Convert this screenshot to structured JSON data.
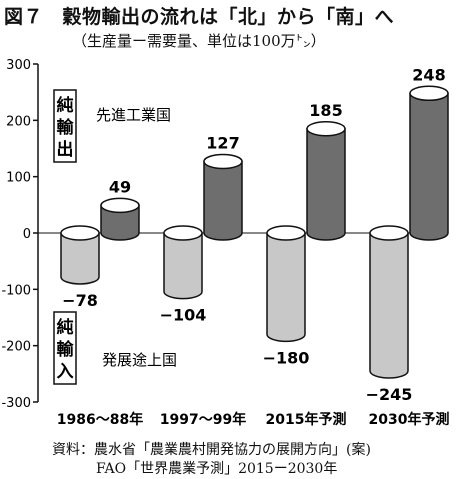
{
  "figure": {
    "title": "図７　穀物輸出の流れは「北」から「南」へ",
    "subtitle": "（生産量ー需要量、単位は100万㌧）"
  },
  "chart_data": {
    "type": "bar",
    "bar_style": "3d-cylinder",
    "categories": [
      "1986～88年",
      "1997～99年",
      "2015年予測",
      "2030年予測"
    ],
    "series": [
      {
        "name": "発展途上国",
        "values": [
          -78,
          -104,
          -180,
          -245
        ],
        "color": "#c8c8c8"
      },
      {
        "name": "先進工業国",
        "values": [
          49,
          127,
          185,
          248
        ],
        "color": "#6e6e6e"
      }
    ],
    "data_labels": {
      "発展途上国": [
        "−78",
        "−104",
        "−180",
        "−245"
      ],
      "先進工業国": [
        "49",
        "127",
        "185",
        "248"
      ]
    },
    "y_ticks": [
      300,
      200,
      100,
      0,
      -100,
      -200,
      -300
    ],
    "y_tick_labels": [
      "300",
      "200",
      "100",
      "0",
      "-100",
      "-200",
      "-300"
    ],
    "ylim": [
      -300,
      300
    ],
    "zero_line": true,
    "grid": false,
    "side_labels": {
      "top": "純輸出",
      "bottom": "純輸入"
    }
  },
  "source": {
    "line1": "資料：農水省「農業農村開発協力の展開方向」(案)",
    "line2": "FAO「世界農業予測」2015ー2030年"
  }
}
